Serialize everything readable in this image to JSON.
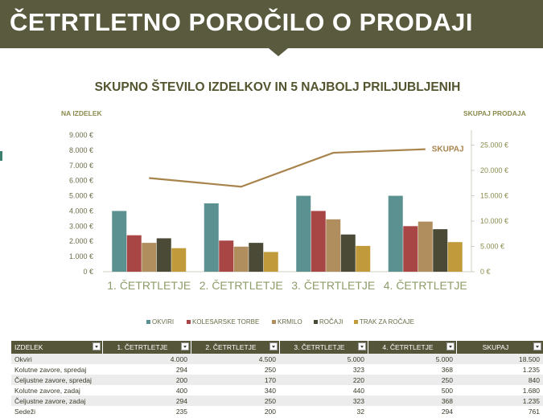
{
  "header": {
    "title": "ČETRTLETNO POROČILO O PRODAJI",
    "accent_color": "#5a5a3f"
  },
  "chart_data": {
    "type": "bar",
    "title": "SKUPNO ŠTEVILO IZDELKOV IN 5 NAJBOLJ PRILJUBLJENIH",
    "ylabel": "NA IZDELEK",
    "y2label": "SKUPAJ PRODAJA",
    "ylim": [
      0,
      9000
    ],
    "y2lim": [
      0,
      27000
    ],
    "yticks": [
      "0 €",
      "1.000 €",
      "2.000 €",
      "3.000 €",
      "4.000 €",
      "5.000 €",
      "6.000 €",
      "7.000 €",
      "8.000 €",
      "9.000 €"
    ],
    "y2ticks": [
      "0 €",
      "5.000 €",
      "10.000 €",
      "15.000 €",
      "20.000 €",
      "25.000 €"
    ],
    "categories": [
      "1. ČETRTLETJE",
      "2. ČETRTLETJE",
      "3. ČETRTLETJE",
      "4. ČETRTLETJE"
    ],
    "series": [
      {
        "name": "OKVIRI",
        "color": "#5b9191",
        "values": [
          4000,
          4500,
          5000,
          5000
        ]
      },
      {
        "name": "KOLESARSKE TORBE",
        "color": "#a84545",
        "values": [
          2400,
          2050,
          4000,
          3000
        ]
      },
      {
        "name": "KRMILO",
        "color": "#b08e5e",
        "values": [
          1900,
          1650,
          3450,
          3300
        ]
      },
      {
        "name": "ROČAJI",
        "color": "#4a4a36",
        "values": [
          2200,
          1900,
          2450,
          2800
        ]
      },
      {
        "name": "TRAK ZA ROČAJE",
        "color": "#c19a3b",
        "values": [
          1550,
          1300,
          1700,
          1950
        ]
      }
    ],
    "line_series": {
      "name": "SKUPAJ",
      "color": "#a8844c",
      "axis": "right",
      "values": [
        18500,
        16800,
        23500,
        24200
      ]
    },
    "legend": "bottom"
  },
  "table": {
    "columns": [
      "IZDELEK",
      "1. ČETRTLETJE",
      "2. ČETRTLETJE",
      "3. ČETRTLETJE",
      "4. ČETRTLETJE",
      "SKUPAJ"
    ],
    "rows": [
      [
        "Okviri",
        "4.000",
        "4.500",
        "5.000",
        "5.000",
        "18.500"
      ],
      [
        "Kolutne zavore, spredaj",
        "294",
        "250",
        "323",
        "368",
        "1.235"
      ],
      [
        "Čeljustne zavore, spredaj",
        "200",
        "170",
        "220",
        "250",
        "840"
      ],
      [
        "Kolutne zavore, zadaj",
        "400",
        "340",
        "440",
        "500",
        "1.680"
      ],
      [
        "Čeljustne zavore, zadaj",
        "294",
        "250",
        "323",
        "368",
        "1.235"
      ],
      [
        "Sedeži",
        "235",
        "200",
        "32",
        "294",
        "761"
      ]
    ]
  }
}
